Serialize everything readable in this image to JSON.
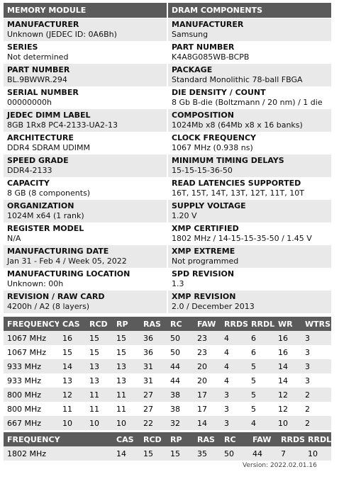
{
  "module": {
    "header": "MEMORY MODULE",
    "fields": [
      {
        "label": "MANUFACTURER",
        "value": "Unknown (JEDEC ID: 0A6Bh)"
      },
      {
        "label": "SERIES",
        "value": "Not determined"
      },
      {
        "label": "PART NUMBER",
        "value": "BL.9BWWR.294"
      },
      {
        "label": "SERIAL NUMBER",
        "value": "00000000h"
      },
      {
        "label": "JEDEC DIMM LABEL",
        "value": "8GB 1Rx8 PC4-2133-UA2-13"
      },
      {
        "label": "ARCHITECTURE",
        "value": "DDR4 SDRAM UDIMM"
      },
      {
        "label": "SPEED GRADE",
        "value": "DDR4-2133"
      },
      {
        "label": "CAPACITY",
        "value": "8 GB (8 components)"
      },
      {
        "label": "ORGANIZATION",
        "value": "1024M x64 (1 rank)"
      },
      {
        "label": "REGISTER MODEL",
        "value": "N/A"
      },
      {
        "label": "MANUFACTURING DATE",
        "value": "Jan 31 - Feb 4 / Week 05, 2022"
      },
      {
        "label": "MANUFACTURING LOCATION",
        "value": "Unknown: 00h"
      },
      {
        "label": "REVISION / RAW CARD",
        "value": "4200h / A2 (8 layers)"
      }
    ]
  },
  "dram": {
    "header": "DRAM COMPONENTS",
    "fields": [
      {
        "label": "MANUFACTURER",
        "value": "Samsung"
      },
      {
        "label": "PART NUMBER",
        "value": "K4A8G085WB-BCPB"
      },
      {
        "label": "PACKAGE",
        "value": "Standard Monolithic 78-ball FBGA"
      },
      {
        "label": "DIE DENSITY / COUNT",
        "value": "8 Gb B-die (Boltzmann / 20 nm) / 1 die"
      },
      {
        "label": "COMPOSITION",
        "value": "1024Mb x8 (64Mb x8 x 16 banks)"
      },
      {
        "label": "CLOCK FREQUENCY",
        "value": "1067 MHz (0.938 ns)"
      },
      {
        "label": "MINIMUM TIMING DELAYS",
        "value": "15-15-15-36-50"
      },
      {
        "label": "READ LATENCIES SUPPORTED",
        "value": "16T, 15T, 14T, 13T, 12T, 11T, 10T"
      },
      {
        "label": "SUPPLY VOLTAGE",
        "value": "1.20 V"
      },
      {
        "label": "XMP CERTIFIED",
        "value": "1802 MHz / 14-15-15-35-50 / 1.45 V"
      },
      {
        "label": "XMP EXTREME",
        "value": "Not programmed"
      },
      {
        "label": "SPD REVISION",
        "value": "1.3"
      },
      {
        "label": "XMP REVISION",
        "value": "2.0 / December 2013"
      }
    ]
  },
  "jedec_timings": {
    "columns": [
      "FREQUENCY",
      "CAS",
      "RCD",
      "RP",
      "RAS",
      "RC",
      "FAW",
      "RRDS",
      "RRDL",
      "WR",
      "WTRS"
    ],
    "rows": [
      [
        "1067 MHz",
        "16",
        "15",
        "15",
        "36",
        "50",
        "23",
        "4",
        "6",
        "16",
        "3"
      ],
      [
        "1067 MHz",
        "15",
        "15",
        "15",
        "36",
        "50",
        "23",
        "4",
        "6",
        "16",
        "3"
      ],
      [
        "933 MHz",
        "14",
        "13",
        "13",
        "31",
        "44",
        "20",
        "4",
        "5",
        "14",
        "3"
      ],
      [
        "933 MHz",
        "13",
        "13",
        "13",
        "31",
        "44",
        "20",
        "4",
        "5",
        "14",
        "3"
      ],
      [
        "800 MHz",
        "12",
        "11",
        "11",
        "27",
        "38",
        "17",
        "3",
        "5",
        "12",
        "2"
      ],
      [
        "800 MHz",
        "11",
        "11",
        "11",
        "27",
        "38",
        "17",
        "3",
        "5",
        "12",
        "2"
      ],
      [
        "667 MHz",
        "10",
        "10",
        "10",
        "22",
        "32",
        "14",
        "3",
        "4",
        "10",
        "2"
      ]
    ]
  },
  "xmp_timings": {
    "columns": [
      "FREQUENCY",
      "CAS",
      "RCD",
      "RP",
      "RAS",
      "RC",
      "FAW",
      "RRDS",
      "RRDL"
    ],
    "rows": [
      [
        "1802 MHz",
        "14",
        "15",
        "15",
        "35",
        "50",
        "44",
        "7",
        "10"
      ]
    ]
  },
  "footer": {
    "version": "Version: 2022.02.01.16"
  }
}
